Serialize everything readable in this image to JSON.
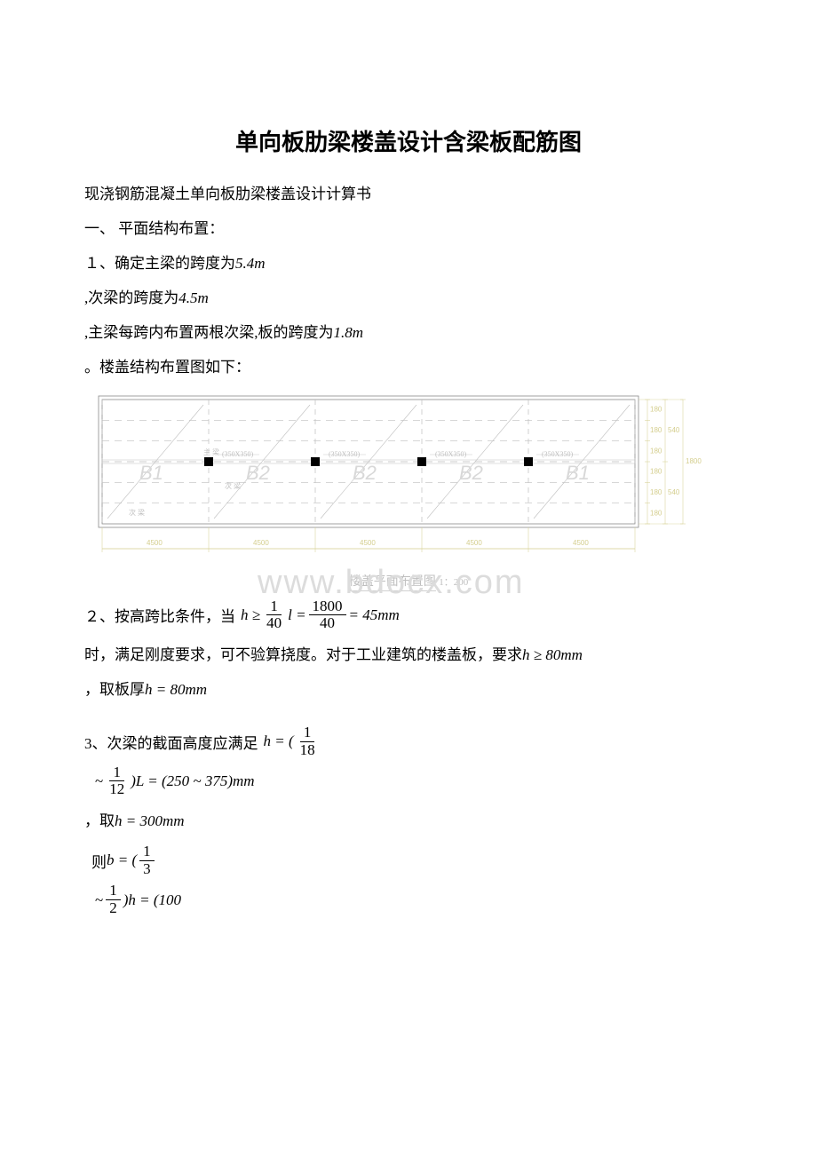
{
  "title": "单向板肋梁楼盖设计含梁板配筋图",
  "intro": "现浇钢筋混凝土单向板肋梁楼盖设计计算书",
  "sec1_heading": "一、 平面结构布置：",
  "item1_text": "１、确定主梁的跨度为",
  "item1_val": "5.4m",
  "item1b": ",次梁的跨度为",
  "item1b_val": "4.5m",
  "item1c": ",主梁每跨内布置两根次梁,板的跨度为",
  "item1c_val": "1.8m",
  "item1d": "。楼盖结构布置图如下：",
  "diagram": {
    "caption_text": "楼盖平面布置图",
    "caption_scale": "1：200",
    "bay_width": 4500,
    "bays": 5,
    "slab_strips": [
      180,
      180,
      180
    ],
    "right_dims_inner": [
      "180",
      "180",
      "180",
      "180",
      "180",
      "180"
    ],
    "right_dims_mid": [
      "540",
      "540"
    ],
    "right_dims_outer": "1800",
    "bottom_dims": [
      "4500",
      "4500",
      "4500",
      "4500",
      "4500"
    ],
    "beam_label": "(350X350)",
    "zhu_liang": "主 梁",
    "ci_liang": "次 梁",
    "big_labels": [
      "B1",
      "B2",
      "B2",
      "B2",
      "B1"
    ],
    "colors": {
      "wall": "#8a8a8a",
      "dash": "#bfbfbf",
      "dim": "#d4ce8e",
      "column": "#000000"
    }
  },
  "item2_prefix": "２、按高跨比条件，当",
  "item2_formula": {
    "lhs": "h ≥",
    "frac1_num": "1",
    "frac1_den": "40",
    "mid": "l =",
    "frac2_num": "1800",
    "frac2_den": "40",
    "rhs": "= 45mm"
  },
  "item2_line2a": "时，满足刚度要求，可不验算挠度。对于工业建筑的楼盖板，要求",
  "item2_line2b": "h ≥ 80mm",
  "item2_line3a": "，取板厚",
  "item2_line3b": "h = 80mm",
  "item3_prefix": "3、次梁的截面高度应满足",
  "item3_f1": {
    "lhs": "h = (",
    "num": "1",
    "den": "18"
  },
  "item3_f2": {
    "pre": "~",
    "num": "1",
    "den": "12",
    "post": ")L = (250 ~ 375)mm"
  },
  "item3_line3": "，取",
  "item3_line3b": "h = 300mm",
  "item3_f3_pre": "则",
  "item3_f3": {
    "lhs": "b = (",
    "num": "1",
    "den": "3"
  },
  "item3_f4": {
    "pre": "~",
    "num": "1",
    "den": "2",
    "post": ")h = (100"
  },
  "watermark": "www.bdocx.com"
}
